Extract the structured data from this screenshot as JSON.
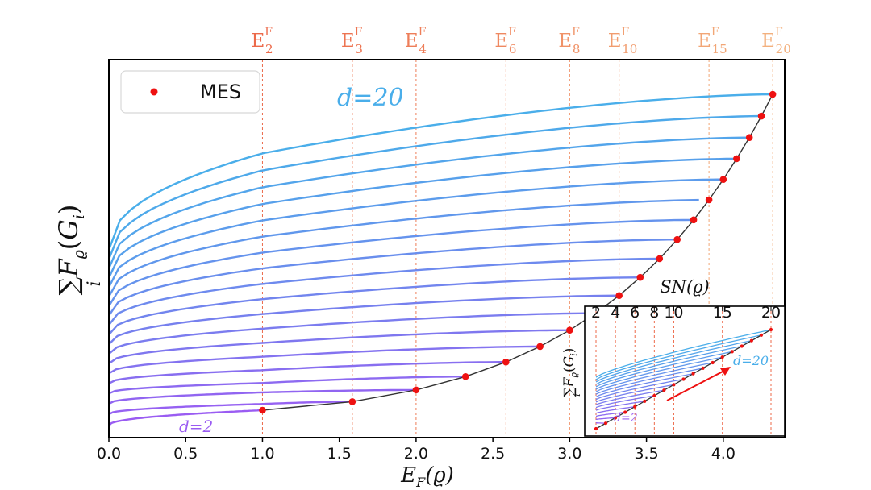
{
  "chart_data": {
    "type": "line",
    "title": "",
    "xlabel": "E_F(ϱ)",
    "ylabel": "∑_i F_ϱ(G_i)",
    "xlim": [
      0,
      4.4
    ],
    "xticks": [
      "0.0",
      "0.5",
      "1.0",
      "1.5",
      "2.0",
      "2.5",
      "3.0",
      "3.5",
      "4.0"
    ],
    "grid": false,
    "legend": {
      "placement": "top-left",
      "entries": [
        "MES"
      ]
    },
    "colors": {
      "low_d": "#9a5cf2",
      "high_d": "#4aaeea",
      "mes_marker": "#ee1111",
      "mes_curve": "#333333",
      "vlines": "#f08a5e"
    },
    "top_axis": {
      "labels": [
        {
          "main": "E",
          "sup": "F",
          "sub": "2",
          "x": 1.0
        },
        {
          "main": "E",
          "sup": "F",
          "sub": "3",
          "x": 1.585
        },
        {
          "main": "E",
          "sup": "F",
          "sub": "4",
          "x": 2.0
        },
        {
          "main": "E",
          "sup": "F",
          "sub": "6",
          "x": 2.585
        },
        {
          "main": "E",
          "sup": "F",
          "sub": "8",
          "x": 3.0
        },
        {
          "main": "E",
          "sup": "F",
          "sub": "10",
          "x": 3.322
        },
        {
          "main": "E",
          "sup": "F",
          "sub": "15",
          "x": 3.907
        },
        {
          "main": "E",
          "sup": "F",
          "sub": "20",
          "x": 4.322
        }
      ]
    },
    "series_annotations": {
      "top": "d=20",
      "bottom": "d=2"
    },
    "d_range": [
      2,
      20
    ],
    "mes_x": [
      1.0,
      1.585,
      2.0,
      2.322,
      2.585,
      2.807,
      3.0,
      3.17,
      3.322,
      3.459,
      3.585,
      3.7,
      3.807,
      3.907,
      4.0,
      4.087,
      4.17,
      4.248,
      4.322
    ],
    "inset": {
      "title": "SN(ϱ)",
      "top_ticks": [
        "2",
        "4",
        "6",
        "8",
        "10",
        "15",
        "20"
      ],
      "ylabel": "∑_i F_ϱ(G_i)",
      "annotations": {
        "top": "d=20",
        "bottom": "d=2"
      }
    }
  }
}
